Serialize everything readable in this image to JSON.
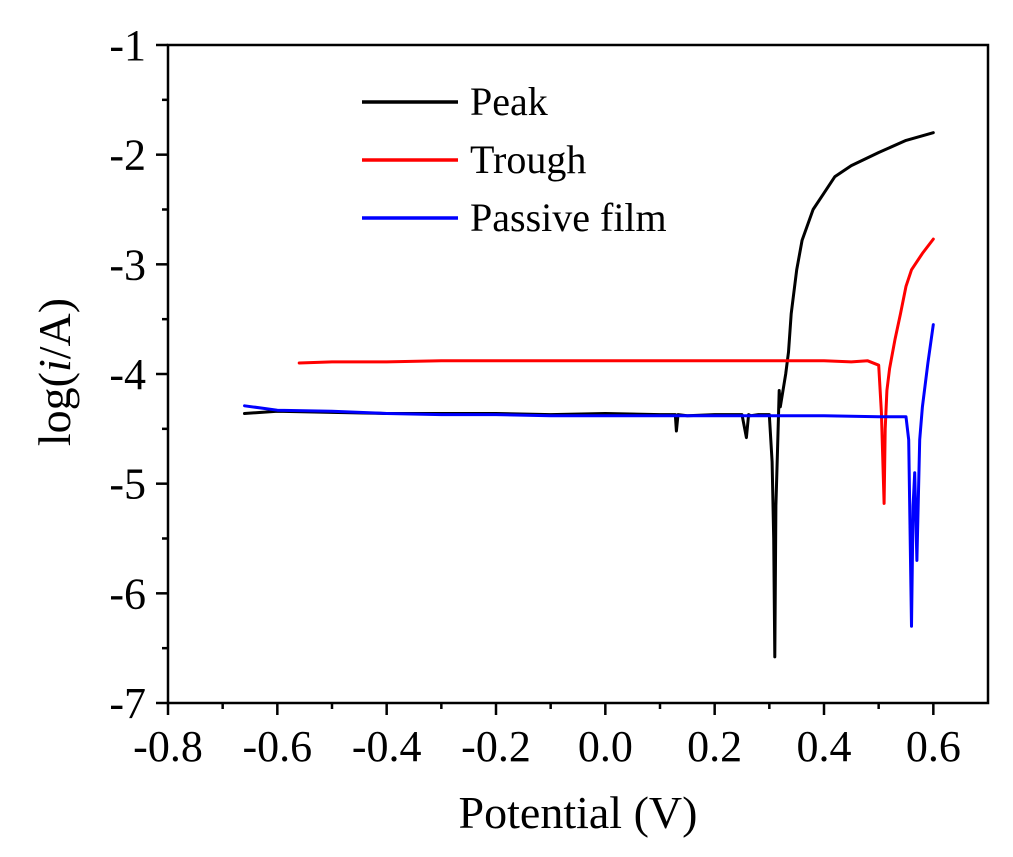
{
  "chart_data": {
    "type": "line",
    "title": "",
    "xlabel": "Potential (V)",
    "ylabel_prefix": "log(",
    "ylabel_italic": "i",
    "ylabel_suffix": "/A)",
    "xlim": [
      -0.8,
      0.7
    ],
    "ylim": [
      -7,
      -1
    ],
    "xticks": [
      -0.8,
      -0.6,
      -0.4,
      -0.2,
      0.0,
      0.2,
      0.4,
      0.6
    ],
    "xtick_labels": [
      "-0.8",
      "-0.6",
      "-0.4",
      "-0.2",
      "0.0",
      "0.2",
      "0.4",
      "0.6"
    ],
    "yticks": [
      -1,
      -2,
      -3,
      -4,
      -5,
      -6,
      -7
    ],
    "ytick_labels": [
      "-1",
      "-2",
      "-3",
      "-4",
      "-5",
      "-6",
      "-7"
    ],
    "grid": false,
    "legend_position": "top-center",
    "series": [
      {
        "name": "Peak",
        "color": "#000000",
        "x": [
          -0.66,
          -0.6,
          -0.5,
          -0.4,
          -0.3,
          -0.2,
          -0.1,
          0.0,
          0.1,
          0.128,
          0.13,
          0.133,
          0.15,
          0.2,
          0.25,
          0.258,
          0.262,
          0.266,
          0.28,
          0.29,
          0.3,
          0.305,
          0.308,
          0.31,
          0.312,
          0.315,
          0.318,
          0.32,
          0.33,
          0.335,
          0.34,
          0.35,
          0.36,
          0.38,
          0.4,
          0.42,
          0.45,
          0.5,
          0.55,
          0.6
        ],
        "y": [
          -4.36,
          -4.34,
          -4.35,
          -4.36,
          -4.36,
          -4.36,
          -4.37,
          -4.36,
          -4.37,
          -4.37,
          -4.52,
          -4.37,
          -4.38,
          -4.37,
          -4.37,
          -4.58,
          -4.37,
          -4.38,
          -4.37,
          -4.37,
          -4.37,
          -4.8,
          -5.5,
          -6.58,
          -5.2,
          -4.7,
          -4.15,
          -4.3,
          -4.0,
          -3.8,
          -3.45,
          -3.05,
          -2.78,
          -2.5,
          -2.35,
          -2.2,
          -2.1,
          -1.98,
          -1.87,
          -1.8
        ]
      },
      {
        "name": "Trough",
        "color": "#ff0000",
        "x": [
          -0.56,
          -0.5,
          -0.4,
          -0.3,
          -0.2,
          -0.1,
          0.0,
          0.1,
          0.2,
          0.3,
          0.4,
          0.45,
          0.48,
          0.5,
          0.505,
          0.51,
          0.512,
          0.515,
          0.52,
          0.53,
          0.54,
          0.55,
          0.56,
          0.58,
          0.6
        ],
        "y": [
          -3.9,
          -3.89,
          -3.89,
          -3.88,
          -3.88,
          -3.88,
          -3.88,
          -3.88,
          -3.88,
          -3.88,
          -3.88,
          -3.89,
          -3.88,
          -3.92,
          -4.35,
          -5.18,
          -4.5,
          -4.15,
          -3.95,
          -3.68,
          -3.45,
          -3.2,
          -3.05,
          -2.9,
          -2.77
        ]
      },
      {
        "name": "Passive film",
        "color": "#0000ff",
        "x": [
          -0.66,
          -0.6,
          -0.5,
          -0.4,
          -0.3,
          -0.2,
          -0.1,
          0.0,
          0.1,
          0.2,
          0.3,
          0.4,
          0.5,
          0.55,
          0.555,
          0.56,
          0.563,
          0.566,
          0.57,
          0.575,
          0.58,
          0.59,
          0.6
        ],
        "y": [
          -4.29,
          -4.33,
          -4.34,
          -4.36,
          -4.37,
          -4.37,
          -4.38,
          -4.38,
          -4.38,
          -4.38,
          -4.38,
          -4.38,
          -4.39,
          -4.39,
          -4.6,
          -6.3,
          -5.2,
          -4.9,
          -5.7,
          -4.6,
          -4.3,
          -3.9,
          -3.55
        ]
      }
    ]
  }
}
